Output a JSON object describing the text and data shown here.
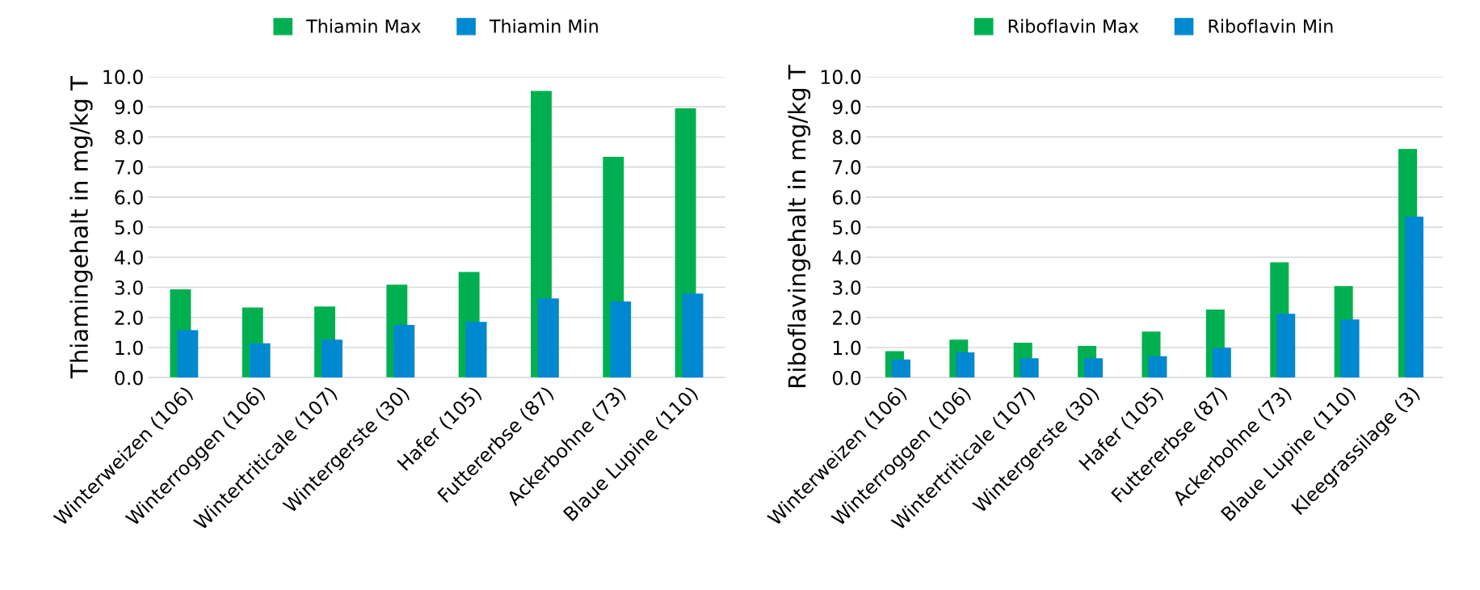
{
  "chart_data": [
    {
      "type": "bar",
      "ylabel": "Thiamingehalt in mg/kg T",
      "categories": [
        "Winterweizen (106)",
        "Winterroggen (106)",
        "Wintertriticale (107)",
        "Wintergerste (30)",
        "Hafer (105)",
        "Futtererbse (87)",
        "Ackerbohne (73)",
        "Blaue Lupine (110)"
      ],
      "series": [
        {
          "name": "Thiamin Max",
          "color": "#00b050",
          "values": [
            2.93,
            2.33,
            2.36,
            3.09,
            3.51,
            9.53,
            7.34,
            8.95
          ]
        },
        {
          "name": "Thiamin Min",
          "color": "#0088d1",
          "values": [
            1.58,
            1.14,
            1.26,
            1.75,
            1.85,
            2.63,
            2.53,
            2.79
          ]
        }
      ],
      "ylim": [
        0,
        10
      ],
      "yticks": [
        {
          "value": 0,
          "label": "0.0"
        },
        {
          "value": 1,
          "label": "1.0"
        },
        {
          "value": 2,
          "label": "2.0"
        },
        {
          "value": 3,
          "label": "3.0"
        },
        {
          "value": 4,
          "label": "4.0"
        },
        {
          "value": 5,
          "label": "5.0"
        },
        {
          "value": 6,
          "label": "6.0"
        },
        {
          "value": 7,
          "label": "7.0"
        },
        {
          "value": 8,
          "label": "8.0"
        },
        {
          "value": 9,
          "label": "9.0"
        },
        {
          "value": 10,
          "label": "10.0"
        }
      ],
      "grid": "y",
      "legend": "top"
    },
    {
      "type": "bar",
      "ylabel": "Riboflavingehalt in mg/kg T",
      "categories": [
        "Winterweizen (106)",
        "Winterroggen (106)",
        "Wintertriticale (107)",
        "Wintergerste (30)",
        "Hafer (105)",
        "Futtererbse (87)",
        "Ackerbohne (73)",
        "Blaue Lupine (110)",
        "Kleegrassilage (3)"
      ],
      "series": [
        {
          "name": "Riboflavin Max",
          "color": "#00b050",
          "values": [
            0.88,
            1.26,
            1.16,
            1.05,
            1.53,
            2.26,
            3.83,
            3.04,
            7.6
          ]
        },
        {
          "name": "Riboflavin Min",
          "color": "#0088d1",
          "values": [
            0.6,
            0.84,
            0.64,
            0.64,
            0.71,
            0.99,
            2.12,
            1.93,
            5.35
          ]
        }
      ],
      "ylim": [
        0,
        10
      ],
      "yticks": [
        {
          "value": 0,
          "label": "0.0"
        },
        {
          "value": 1,
          "label": "1.0"
        },
        {
          "value": 2,
          "label": "2.0"
        },
        {
          "value": 3,
          "label": "3.0"
        },
        {
          "value": 4,
          "label": "4.0"
        },
        {
          "value": 5,
          "label": "5.0"
        },
        {
          "value": 6,
          "label": "6.0"
        },
        {
          "value": 7,
          "label": "7.0"
        },
        {
          "value": 8,
          "label": "8.0"
        },
        {
          "value": 9,
          "label": "9.0"
        },
        {
          "value": 10,
          "label": "10.0"
        }
      ],
      "grid": "y",
      "legend": "top"
    }
  ]
}
